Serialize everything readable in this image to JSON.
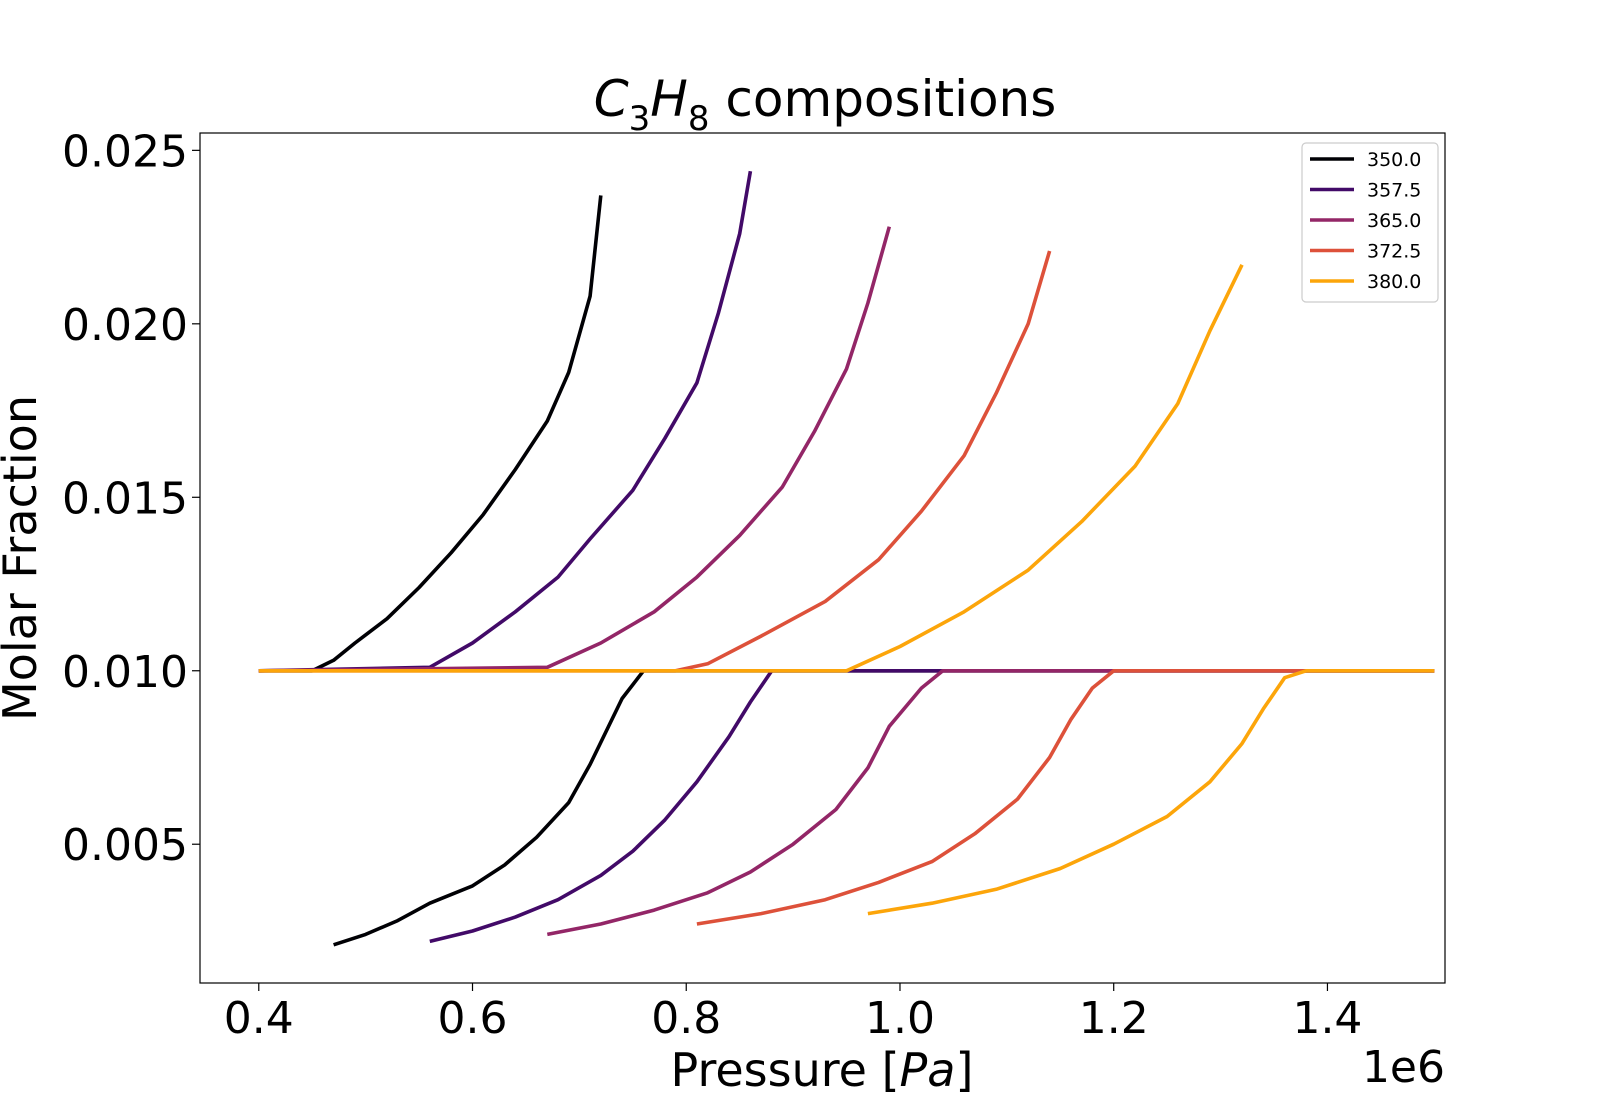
{
  "chart_data": {
    "type": "line",
    "title": {
      "species_c": "C",
      "sub_1": "3",
      "species_h": "H",
      "sub_2": "8",
      "rest": " compositions"
    },
    "xlabel": {
      "text": "Pressure ",
      "lbracket": "[",
      "unit": "Pa",
      "rbracket": "]"
    },
    "ylabel": "Molar Fraction",
    "x_offset_label": "1e6",
    "xlim": [
      0.345,
      1.51
    ],
    "ylim": [
      0.001,
      0.0255
    ],
    "xticks": [
      0.4,
      0.6,
      0.8,
      1.0,
      1.2,
      1.4
    ],
    "xtick_labels": [
      "0.4",
      "0.6",
      "0.8",
      "1.0",
      "1.2",
      "1.4"
    ],
    "yticks": [
      0.005,
      0.01,
      0.015,
      0.02,
      0.025
    ],
    "ytick_labels": [
      "0.005",
      "0.010",
      "0.015",
      "0.020",
      "0.025"
    ],
    "grid": false,
    "legend_position": "top-right",
    "series": [
      {
        "name": "350.0",
        "color": "#000004",
        "upper": [
          [
            0.4,
            0.01
          ],
          [
            0.45,
            0.01
          ],
          [
            0.47,
            0.0103
          ],
          [
            0.49,
            0.0108
          ],
          [
            0.52,
            0.0115
          ],
          [
            0.55,
            0.0124
          ],
          [
            0.58,
            0.0134
          ],
          [
            0.61,
            0.0145
          ],
          [
            0.64,
            0.0158
          ],
          [
            0.67,
            0.0172
          ],
          [
            0.69,
            0.0186
          ],
          [
            0.71,
            0.0208
          ],
          [
            0.72,
            0.0237
          ]
        ],
        "lower": [
          [
            0.47,
            0.0021
          ],
          [
            0.5,
            0.0024
          ],
          [
            0.53,
            0.0028
          ],
          [
            0.56,
            0.0033
          ],
          [
            0.6,
            0.0038
          ],
          [
            0.63,
            0.0044
          ],
          [
            0.66,
            0.0052
          ],
          [
            0.69,
            0.0062
          ],
          [
            0.71,
            0.0073
          ],
          [
            0.74,
            0.0092
          ],
          [
            0.76,
            0.01
          ],
          [
            0.8,
            0.01
          ],
          [
            1.5,
            0.01
          ]
        ]
      },
      {
        "name": "357.5",
        "color": "#420a68",
        "upper": [
          [
            0.4,
            0.01
          ],
          [
            0.56,
            0.0101
          ],
          [
            0.6,
            0.0108
          ],
          [
            0.64,
            0.0117
          ],
          [
            0.68,
            0.0127
          ],
          [
            0.71,
            0.0138
          ],
          [
            0.75,
            0.0152
          ],
          [
            0.78,
            0.0167
          ],
          [
            0.81,
            0.0183
          ],
          [
            0.83,
            0.0203
          ],
          [
            0.85,
            0.0226
          ],
          [
            0.86,
            0.0244
          ]
        ],
        "lower": [
          [
            0.56,
            0.0022
          ],
          [
            0.6,
            0.0025
          ],
          [
            0.64,
            0.0029
          ],
          [
            0.68,
            0.0034
          ],
          [
            0.72,
            0.0041
          ],
          [
            0.75,
            0.0048
          ],
          [
            0.78,
            0.0057
          ],
          [
            0.81,
            0.0068
          ],
          [
            0.84,
            0.0081
          ],
          [
            0.86,
            0.0091
          ],
          [
            0.88,
            0.01
          ],
          [
            0.92,
            0.01
          ],
          [
            1.5,
            0.01
          ]
        ]
      },
      {
        "name": "365.0",
        "color": "#932667",
        "upper": [
          [
            0.4,
            0.01
          ],
          [
            0.67,
            0.0101
          ],
          [
            0.72,
            0.0108
          ],
          [
            0.77,
            0.0117
          ],
          [
            0.81,
            0.0127
          ],
          [
            0.85,
            0.0139
          ],
          [
            0.89,
            0.0153
          ],
          [
            0.92,
            0.0169
          ],
          [
            0.95,
            0.0187
          ],
          [
            0.97,
            0.0206
          ],
          [
            0.99,
            0.0228
          ]
        ],
        "lower": [
          [
            0.67,
            0.0024
          ],
          [
            0.72,
            0.0027
          ],
          [
            0.77,
            0.0031
          ],
          [
            0.82,
            0.0036
          ],
          [
            0.86,
            0.0042
          ],
          [
            0.9,
            0.005
          ],
          [
            0.94,
            0.006
          ],
          [
            0.97,
            0.0072
          ],
          [
            0.99,
            0.0084
          ],
          [
            1.02,
            0.0095
          ],
          [
            1.04,
            0.01
          ],
          [
            1.08,
            0.01
          ],
          [
            1.5,
            0.01
          ]
        ]
      },
      {
        "name": "372.5",
        "color": "#dd513a",
        "upper": [
          [
            0.4,
            0.01
          ],
          [
            0.79,
            0.01
          ],
          [
            0.82,
            0.0102
          ],
          [
            0.87,
            0.011
          ],
          [
            0.93,
            0.012
          ],
          [
            0.98,
            0.0132
          ],
          [
            1.02,
            0.0146
          ],
          [
            1.06,
            0.0162
          ],
          [
            1.09,
            0.018
          ],
          [
            1.12,
            0.02
          ],
          [
            1.14,
            0.0221
          ]
        ],
        "lower": [
          [
            0.81,
            0.0027
          ],
          [
            0.87,
            0.003
          ],
          [
            0.93,
            0.0034
          ],
          [
            0.98,
            0.0039
          ],
          [
            1.03,
            0.0045
          ],
          [
            1.07,
            0.0053
          ],
          [
            1.11,
            0.0063
          ],
          [
            1.14,
            0.0075
          ],
          [
            1.16,
            0.0086
          ],
          [
            1.18,
            0.0095
          ],
          [
            1.2,
            0.01
          ],
          [
            1.25,
            0.01
          ],
          [
            1.5,
            0.01
          ]
        ]
      },
      {
        "name": "380.0",
        "color": "#fca50a",
        "upper": [
          [
            0.4,
            0.01
          ],
          [
            0.95,
            0.01
          ],
          [
            1.0,
            0.0107
          ],
          [
            1.06,
            0.0117
          ],
          [
            1.12,
            0.0129
          ],
          [
            1.17,
            0.0143
          ],
          [
            1.22,
            0.0159
          ],
          [
            1.26,
            0.0177
          ],
          [
            1.29,
            0.0198
          ],
          [
            1.32,
            0.0217
          ]
        ],
        "lower": [
          [
            0.97,
            0.003
          ],
          [
            1.03,
            0.0033
          ],
          [
            1.09,
            0.0037
          ],
          [
            1.15,
            0.0043
          ],
          [
            1.2,
            0.005
          ],
          [
            1.25,
            0.0058
          ],
          [
            1.29,
            0.0068
          ],
          [
            1.32,
            0.0079
          ],
          [
            1.34,
            0.0089
          ],
          [
            1.36,
            0.0098
          ],
          [
            1.38,
            0.01
          ],
          [
            1.42,
            0.01
          ],
          [
            1.5,
            0.01
          ]
        ]
      }
    ]
  }
}
